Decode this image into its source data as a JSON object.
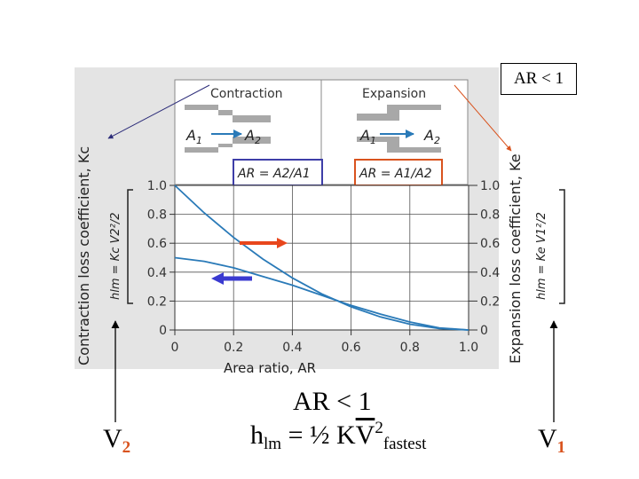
{
  "figure": {
    "contraction_title": "Contraction",
    "expansion_title": "Expansion",
    "contraction_a_in": "A",
    "contraction_a_in_sub": "1",
    "contraction_a_out": "A",
    "contraction_a_out_sub": "2",
    "expansion_a_in": "A",
    "expansion_a_in_sub": "1",
    "expansion_a_out": "A",
    "expansion_a_out_sub": "2",
    "contraction_formula": "AR = A2/A1",
    "expansion_formula": "AR = A1/A2",
    "left_axis_label": "Contraction loss coefficient, Kc",
    "left_head_loss": "hlm = Kc V2²/2",
    "right_axis_label": "Expansion loss coefficient, Ke",
    "right_head_loss": "hlm = Ke V1²/2",
    "x_axis_label": "Area ratio, AR"
  },
  "chart_data": {
    "type": "line",
    "xlabel": "Area ratio, AR",
    "ylabel_left": "Contraction loss coefficient, Kc",
    "ylabel_right": "Expansion loss coefficient, Ke",
    "xlim": [
      0,
      1.0
    ],
    "ylim": [
      0,
      1.0
    ],
    "x_ticks": [
      "0",
      "0.2",
      "0.4",
      "0.6",
      "0.8",
      "1.0"
    ],
    "y_ticks": [
      "0",
      "0.2",
      "0.4",
      "0.6",
      "0.8",
      "1.0"
    ],
    "series": [
      {
        "name": "Expansion",
        "x": [
          0,
          0.1,
          0.2,
          0.3,
          0.4,
          0.5,
          0.6,
          0.7,
          0.8,
          0.9,
          1.0
        ],
        "values": [
          1.0,
          0.81,
          0.64,
          0.49,
          0.36,
          0.25,
          0.16,
          0.09,
          0.04,
          0.01,
          0.0
        ]
      },
      {
        "name": "Contraction",
        "x": [
          0,
          0.1,
          0.2,
          0.3,
          0.4,
          0.5,
          0.6,
          0.7,
          0.8,
          0.9,
          1.0
        ],
        "values": [
          0.5,
          0.475,
          0.43,
          0.37,
          0.31,
          0.24,
          0.17,
          0.11,
          0.055,
          0.015,
          0.0
        ]
      }
    ],
    "grid": true
  },
  "annotations": {
    "top_right_box": "AR < 1",
    "left_velocity": "V",
    "left_velocity_sub": "2",
    "right_velocity": "V",
    "right_velocity_sub": "1",
    "bottom_ar": "AR < 1",
    "bottom_h": "h",
    "bottom_h_sub": "lm",
    "bottom_eq": " = ½ K",
    "bottom_v": "V",
    "bottom_sup": "2",
    "bottom_fastest": "fastest"
  },
  "colors": {
    "curve": "#2a7ab8",
    "red_arrow": "#e8461c",
    "blue_arrow": "#3a3ad0",
    "box_blue": "#3e3ea8",
    "box_red": "#d9531e",
    "pipe_gray": "#a8a8a8",
    "bg_gray": "#e4e4e4"
  }
}
